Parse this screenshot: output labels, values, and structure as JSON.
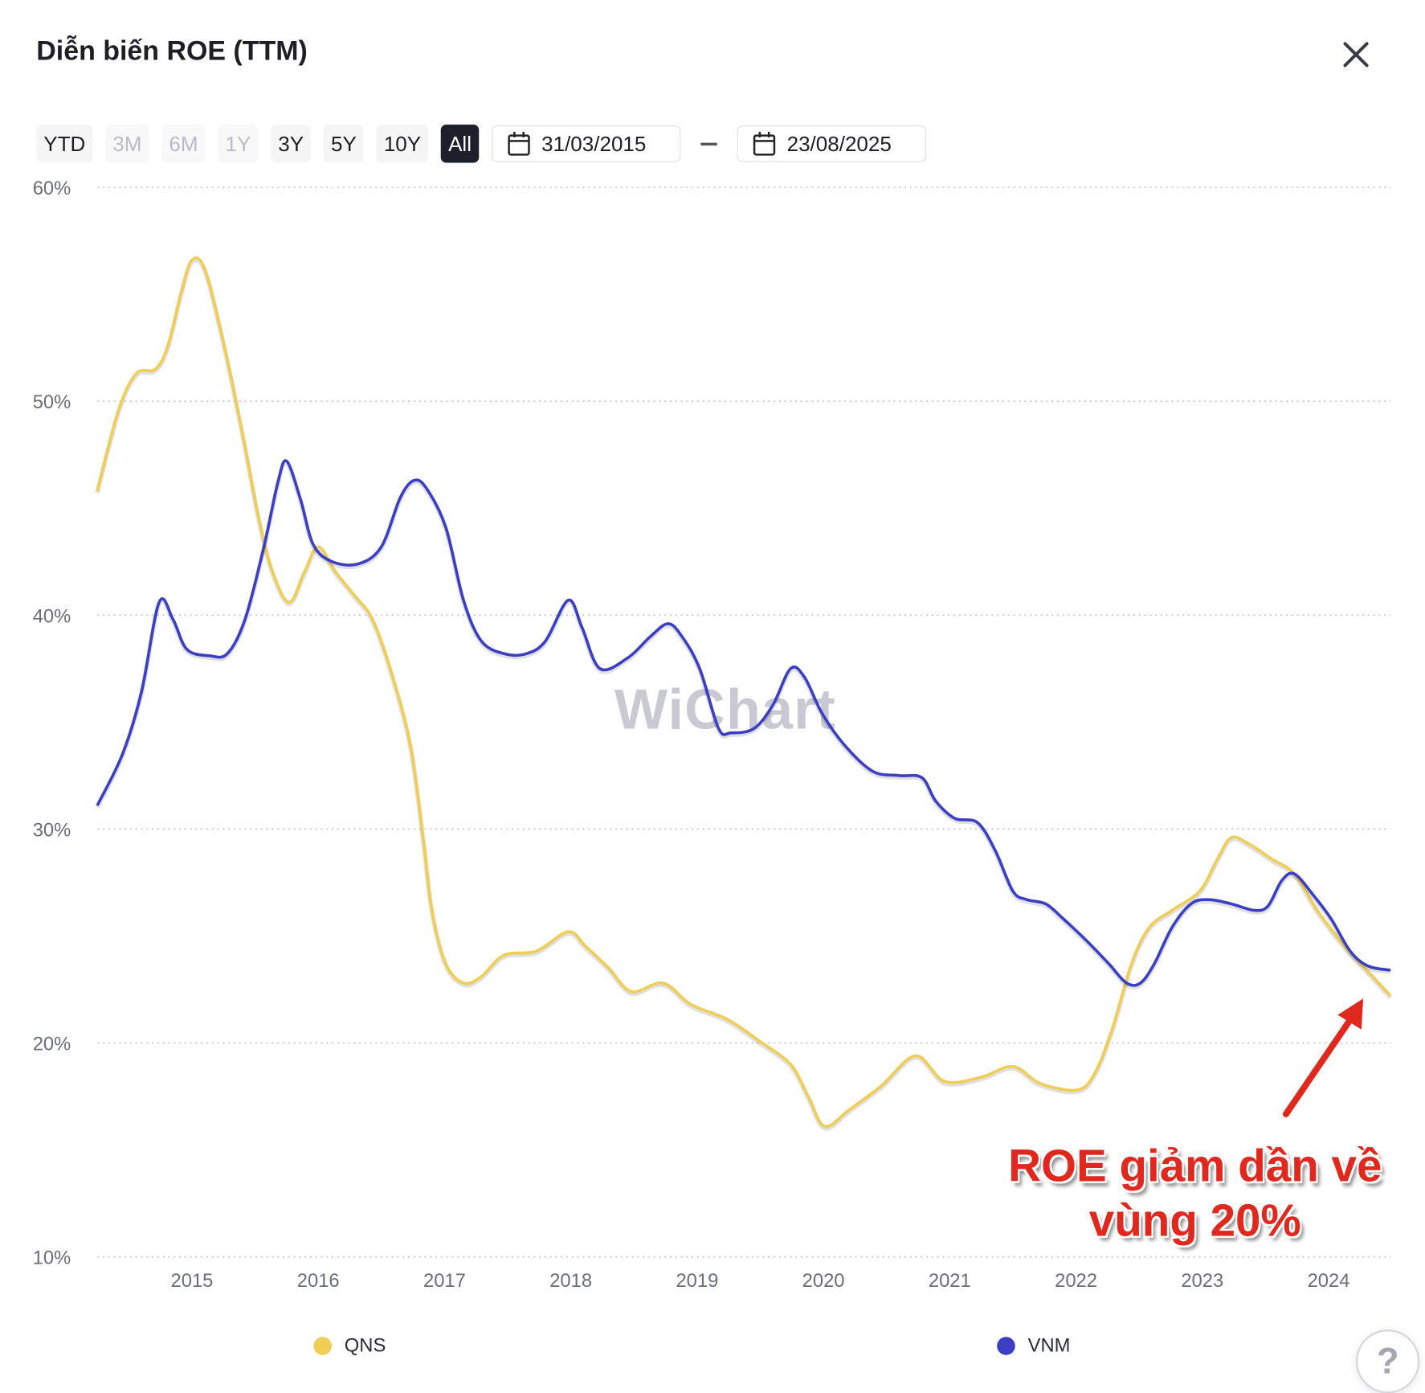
{
  "header": {
    "title": "Diễn biến ROE (TTM)",
    "close_icon": "close-icon"
  },
  "toolbar": {
    "ranges": [
      {
        "label": "YTD",
        "state": "enabled"
      },
      {
        "label": "3M",
        "state": "disabled"
      },
      {
        "label": "6M",
        "state": "disabled"
      },
      {
        "label": "1Y",
        "state": "disabled"
      },
      {
        "label": "3Y",
        "state": "enabled"
      },
      {
        "label": "5Y",
        "state": "enabled"
      },
      {
        "label": "10Y",
        "state": "enabled"
      },
      {
        "label": "All",
        "state": "active"
      }
    ],
    "start_date": "31/03/2015",
    "end_date": "23/08/2025"
  },
  "watermark": "WiChart",
  "annotation": {
    "line1": "ROE giảm dần về",
    "line2": "vùng 20%",
    "color": "#e0281e"
  },
  "help_label": "?",
  "chart_data": {
    "type": "line",
    "title": "Diễn biến ROE (TTM)",
    "xlabel": "",
    "ylabel": "",
    "xlim": [
      2014.25,
      2024.49
    ],
    "ylim": [
      10,
      60
    ],
    "y_ticks": [
      60,
      50,
      40,
      30,
      20,
      10
    ],
    "y_tick_labels": [
      "60%",
      "50%",
      "40%",
      "30%",
      "20%",
      "10%"
    ],
    "x_ticks": [
      2015,
      2016,
      2017,
      2018,
      2019,
      2020,
      2021,
      2022,
      2023,
      2024
    ],
    "x_tick_labels": [
      "2015",
      "2016",
      "2017",
      "2018",
      "2019",
      "2020",
      "2021",
      "2022",
      "2023",
      "2024"
    ],
    "grid": true,
    "legend": "bottom",
    "series": [
      {
        "name": "QNS",
        "color": "#f0cd55",
        "x": [
          2014.25,
          2014.42,
          2014.56,
          2014.71,
          2014.81,
          2014.92,
          2015.0,
          2015.1,
          2015.24,
          2015.39,
          2015.53,
          2015.64,
          2015.77,
          2015.89,
          2016.0,
          2016.14,
          2016.29,
          2016.43,
          2016.58,
          2016.73,
          2016.83,
          2016.9,
          2017.01,
          2017.15,
          2017.29,
          2017.47,
          2017.73,
          2017.98,
          2018.12,
          2018.3,
          2018.48,
          2018.73,
          2018.95,
          2019.24,
          2019.49,
          2019.74,
          2019.88,
          2020.01,
          2020.21,
          2020.46,
          2020.73,
          2020.96,
          2021.25,
          2021.5,
          2021.72,
          2022.01,
          2022.15,
          2022.29,
          2022.44,
          2022.58,
          2022.76,
          2022.98,
          2023.12,
          2023.23,
          2023.37,
          2023.55,
          2023.73,
          2023.91,
          2024.13,
          2024.35,
          2024.49
        ],
        "y": [
          45.8,
          49.6,
          51.3,
          51.5,
          52.6,
          55.2,
          56.6,
          56.2,
          53.0,
          48.8,
          44.5,
          42.0,
          40.6,
          42.0,
          43.2,
          42.0,
          40.9,
          39.8,
          37.3,
          33.9,
          29.6,
          26.2,
          23.7,
          22.8,
          23.1,
          24.1,
          24.3,
          25.2,
          24.5,
          23.5,
          22.4,
          22.8,
          21.8,
          21.1,
          20.1,
          19.0,
          17.5,
          16.1,
          16.9,
          18.0,
          19.4,
          18.2,
          18.4,
          18.9,
          18.1,
          17.8,
          18.6,
          20.7,
          23.7,
          25.4,
          26.2,
          27.1,
          28.6,
          29.6,
          29.3,
          28.6,
          27.9,
          26.2,
          24.5,
          23.1,
          22.2
        ]
      },
      {
        "name": "VNM",
        "color": "#3b3fc4",
        "x": [
          2014.25,
          2014.45,
          2014.6,
          2014.74,
          2014.85,
          2014.96,
          2015.14,
          2015.28,
          2015.42,
          2015.57,
          2015.68,
          2015.75,
          2015.86,
          2015.96,
          2016.11,
          2016.32,
          2016.5,
          2016.65,
          2016.76,
          2016.86,
          2017.01,
          2017.15,
          2017.29,
          2017.47,
          2017.65,
          2017.8,
          2017.98,
          2018.09,
          2018.23,
          2018.45,
          2018.63,
          2018.77,
          2018.88,
          2019.02,
          2019.17,
          2019.27,
          2019.45,
          2019.6,
          2019.74,
          2019.85,
          2019.99,
          2020.17,
          2020.39,
          2020.6,
          2020.78,
          2020.89,
          2021.04,
          2021.22,
          2021.36,
          2021.5,
          2021.61,
          2021.76,
          2021.9,
          2022.08,
          2022.26,
          2022.4,
          2022.51,
          2022.62,
          2022.76,
          2022.91,
          2023.05,
          2023.23,
          2023.41,
          2023.52,
          2023.63,
          2023.73,
          2023.88,
          2024.02,
          2024.17,
          2024.31,
          2024.49
        ],
        "y": [
          31.1,
          33.5,
          36.4,
          40.6,
          39.8,
          38.4,
          38.1,
          38.2,
          39.8,
          43.2,
          46.2,
          47.2,
          45.4,
          43.3,
          42.5,
          42.4,
          43.2,
          45.5,
          46.3,
          45.9,
          44.1,
          40.7,
          38.8,
          38.2,
          38.2,
          38.8,
          40.7,
          39.4,
          37.5,
          38.0,
          39.0,
          39.6,
          39.0,
          37.5,
          34.7,
          34.5,
          34.7,
          35.8,
          37.5,
          37.1,
          35.4,
          33.9,
          32.7,
          32.5,
          32.4,
          31.3,
          30.5,
          30.3,
          29.0,
          27.1,
          26.7,
          26.5,
          25.8,
          24.8,
          23.7,
          22.8,
          22.8,
          23.7,
          25.4,
          26.5,
          26.7,
          26.5,
          26.2,
          26.4,
          27.6,
          27.9,
          26.9,
          25.8,
          24.3,
          23.6,
          23.4
        ]
      }
    ]
  }
}
